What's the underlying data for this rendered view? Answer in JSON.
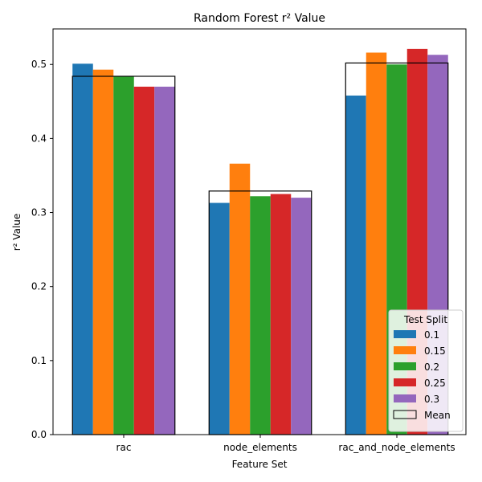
{
  "chart_data": {
    "type": "bar",
    "title": "Random Forest r² Value",
    "xlabel": "Feature Set",
    "ylabel": "r² Value",
    "ylim": [
      0,
      0.548
    ],
    "yticks": [
      "0.0",
      "0.1",
      "0.2",
      "0.3",
      "0.4",
      "0.5"
    ],
    "categories": [
      "rac",
      "node_elements",
      "rac_and_node_elements"
    ],
    "legend": {
      "title": "Test Split",
      "placement": "lower-right",
      "mean_label": "Mean"
    },
    "colors": [
      "#1f77b4",
      "#ff7f0e",
      "#2ca02c",
      "#d62728",
      "#9467bd"
    ],
    "series": [
      {
        "name": "0.1",
        "values": [
          0.501,
          0.313,
          0.458
        ]
      },
      {
        "name": "0.15",
        "values": [
          0.493,
          0.366,
          0.516
        ]
      },
      {
        "name": "0.2",
        "values": [
          0.484,
          0.322,
          0.5
        ]
      },
      {
        "name": "0.25",
        "values": [
          0.47,
          0.325,
          0.521
        ]
      },
      {
        "name": "0.3",
        "values": [
          0.47,
          0.32,
          0.513
        ]
      }
    ],
    "mean": [
      0.484,
      0.329,
      0.502
    ]
  }
}
